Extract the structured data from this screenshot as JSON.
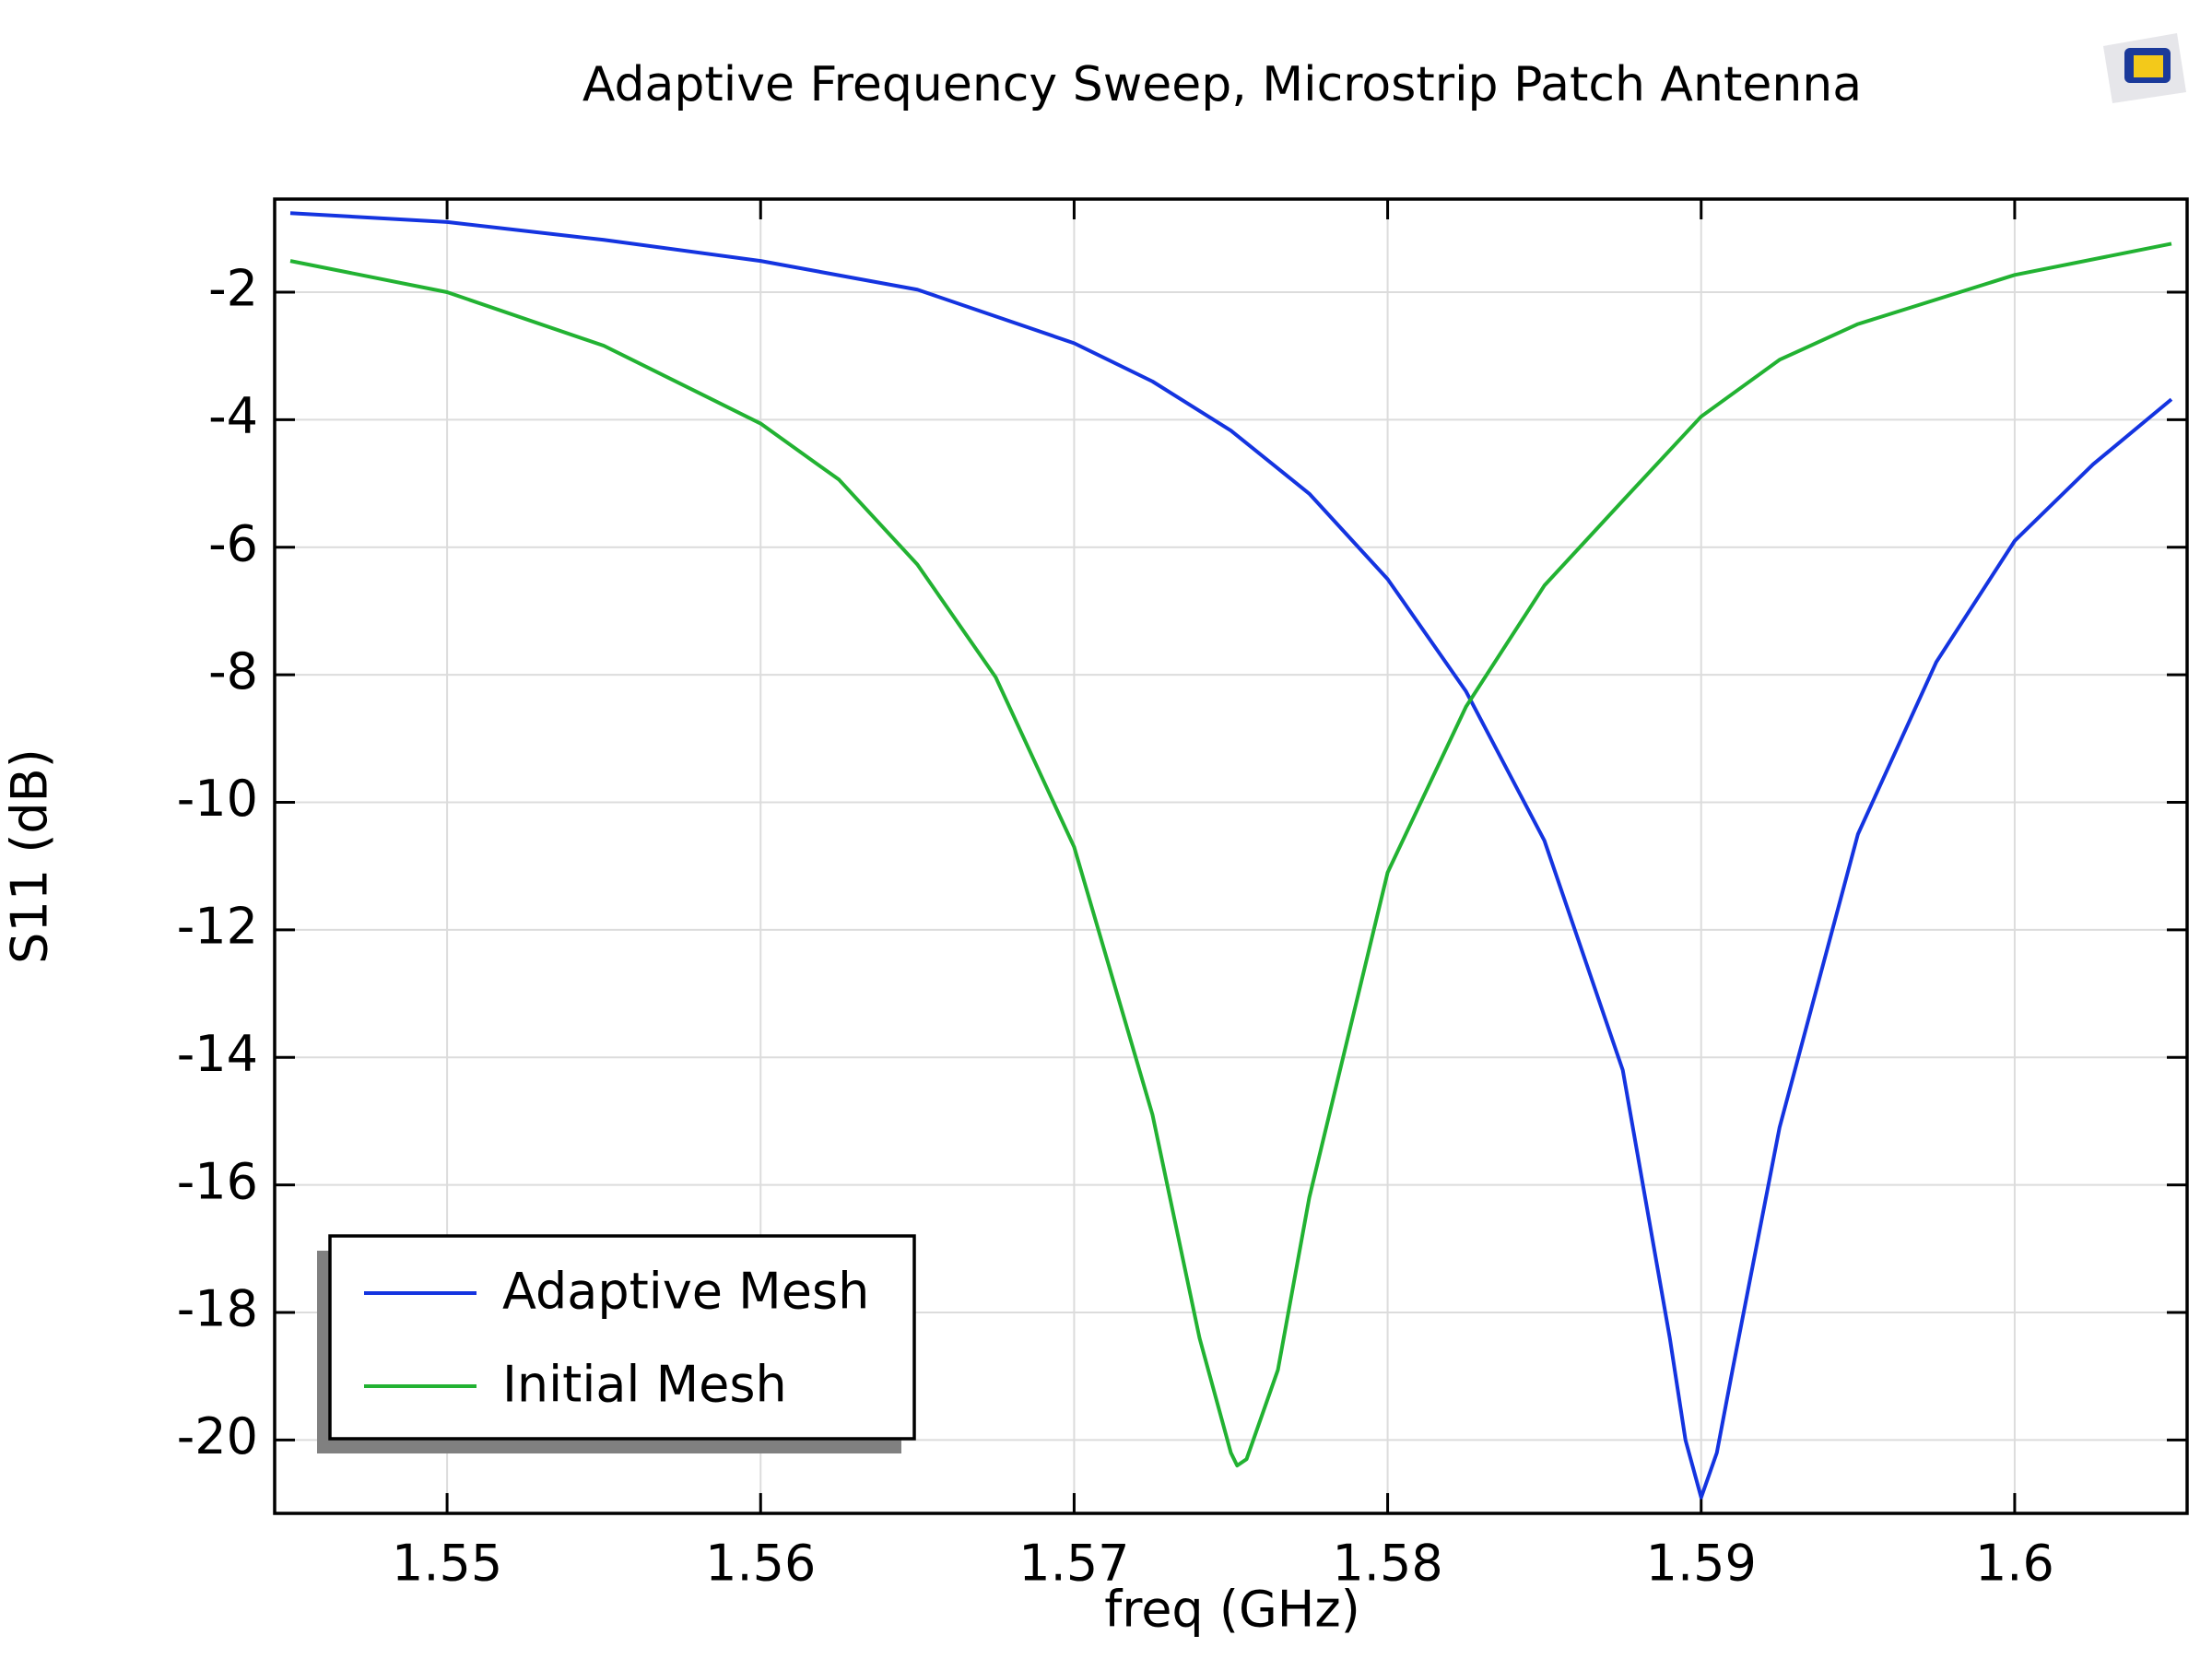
{
  "chart_data": {
    "type": "line",
    "title": "Adaptive Frequency Sweep, Microstrip Patch Antenna",
    "xlabel": "freq (GHz)",
    "ylabel": "S11 (dB)",
    "xlim": [
      1.5445,
      1.6055
    ],
    "ylim": [
      -21.15,
      -0.54
    ],
    "xticks": [
      1.55,
      1.56,
      1.57,
      1.58,
      1.59,
      1.6
    ],
    "yticks": [
      -2,
      -4,
      -6,
      -8,
      -10,
      -12,
      -14,
      -16,
      -18,
      -20
    ],
    "grid": true,
    "legend": "lower left",
    "series": [
      {
        "name": "Adaptive Mesh",
        "color": "#1434e0",
        "x": [
          1.545,
          1.55,
          1.555,
          1.56,
          1.565,
          1.57,
          1.5725,
          1.575,
          1.5775,
          1.58,
          1.5825,
          1.585,
          1.5875,
          1.589,
          1.5895,
          1.59,
          1.5905,
          1.591,
          1.5925,
          1.595,
          1.5975,
          1.6,
          1.6025,
          1.605
        ],
        "values": [
          -0.76,
          -0.9,
          -1.18,
          -1.51,
          -1.96,
          -2.8,
          -3.4,
          -4.17,
          -5.16,
          -6.5,
          -8.26,
          -10.6,
          -14.2,
          -18.4,
          -20.0,
          -20.9,
          -20.2,
          -18.9,
          -15.1,
          -10.5,
          -7.8,
          -5.9,
          -4.7,
          -3.68
        ]
      },
      {
        "name": "Initial Mesh",
        "color": "#22b232",
        "x": [
          1.545,
          1.55,
          1.555,
          1.56,
          1.5625,
          1.565,
          1.5675,
          1.57,
          1.5725,
          1.574,
          1.575,
          1.5752,
          1.5755,
          1.5765,
          1.5775,
          1.58,
          1.5825,
          1.585,
          1.5875,
          1.59,
          1.5925,
          1.595,
          1.6,
          1.605
        ],
        "values": [
          -1.51,
          -2.0,
          -2.84,
          -4.06,
          -4.94,
          -6.27,
          -8.04,
          -10.7,
          -14.9,
          -18.4,
          -20.2,
          -20.4,
          -20.3,
          -18.9,
          -16.2,
          -11.1,
          -8.5,
          -6.6,
          -5.27,
          -3.95,
          -3.06,
          -2.5,
          -1.73,
          -1.24
        ]
      }
    ]
  }
}
